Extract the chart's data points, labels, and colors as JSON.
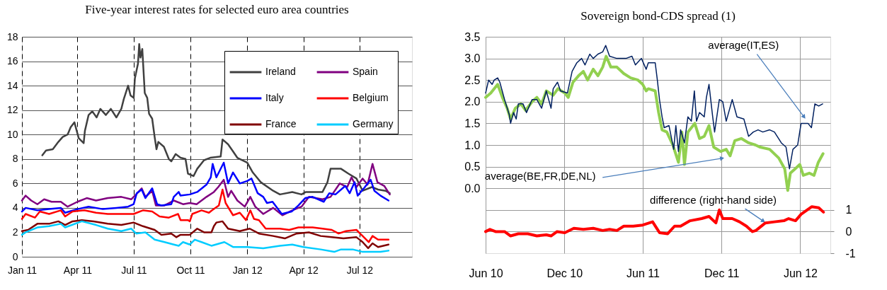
{
  "chart_data": [
    {
      "type": "line",
      "title": "Five-year interest rates for selected euro area countries",
      "xlim": [
        "2011-01-01",
        "2012-09-24"
      ],
      "ylim": [
        0,
        18
      ],
      "xticks": [
        {
          "value": "2011-01-01",
          "label": "Jan 11"
        },
        {
          "value": "2011-04-01",
          "label": "Apr 11"
        },
        {
          "value": "2011-07-01",
          "label": "Jul 11"
        },
        {
          "value": "2011-10-01",
          "label": "Oct 11"
        },
        {
          "value": "2012-01-01",
          "label": "Jan 12"
        },
        {
          "value": "2012-04-01",
          "label": "Apr 12"
        },
        {
          "value": "2012-07-01",
          "label": "Jul 12"
        }
      ],
      "yticks": [
        0,
        2,
        4,
        6,
        8,
        10,
        12,
        14,
        16,
        18
      ],
      "grid": true,
      "legend": "top right",
      "series": [
        {
          "name": "Ireland",
          "color": "#404040",
          "x": [
            "2011-02-03",
            "2011-02-09",
            "2011-02-20",
            "2011-03-01",
            "2011-03-08",
            "2011-03-16",
            "2011-03-21",
            "2011-03-27",
            "2011-04-03",
            "2011-04-11",
            "2011-04-13",
            "2011-04-19",
            "2011-04-25",
            "2011-05-02",
            "2011-05-08",
            "2011-05-17",
            "2011-05-25",
            "2011-06-03",
            "2011-06-11",
            "2011-06-15",
            "2011-06-22",
            "2011-06-26",
            "2011-07-01",
            "2011-07-03",
            "2011-07-08",
            "2011-07-10",
            "2011-07-12",
            "2011-07-15",
            "2011-07-19",
            "2011-07-23",
            "2011-07-26",
            "2011-07-31",
            "2011-08-04",
            "2011-08-07",
            "2011-08-10",
            "2011-08-19",
            "2011-08-27",
            "2011-08-31",
            "2011-09-07",
            "2011-09-15",
            "2011-09-23",
            "2011-09-27",
            "2011-10-06",
            "2011-10-12",
            "2011-10-23",
            "2011-11-02",
            "2011-11-19",
            "2011-11-22",
            "2011-12-01",
            "2011-12-08",
            "2011-12-16",
            "2012-01-01",
            "2012-01-10",
            "2012-01-23",
            "2012-02-12",
            "2012-02-23",
            "2012-03-14",
            "2012-03-29",
            "2012-04-05",
            "2012-05-02",
            "2012-05-10",
            "2012-05-15",
            "2012-06-01",
            "2012-06-13",
            "2012-06-26",
            "2012-07-06",
            "2012-07-21",
            "2012-07-31",
            "2012-08-12",
            "2012-08-19"
          ],
          "values": [
            8.3,
            8.7,
            8.8,
            9.4,
            9.8,
            10.0,
            10.6,
            11.0,
            9.7,
            9.3,
            10.3,
            11.6,
            11.9,
            11.4,
            12.1,
            11.6,
            12.1,
            11.4,
            12.1,
            12.9,
            14.0,
            13.2,
            13.0,
            14.6,
            15.8,
            17.4,
            16.3,
            17.0,
            13.4,
            13.0,
            11.7,
            11.3,
            9.8,
            8.8,
            9.4,
            9.0,
            8.0,
            7.8,
            8.4,
            8.1,
            8.0,
            6.8,
            6.6,
            7.2,
            7.9,
            8.1,
            8.2,
            9.6,
            9.2,
            8.7,
            8.1,
            7.7,
            6.9,
            6.1,
            5.4,
            5.1,
            5.3,
            5.1,
            5.3,
            5.3,
            6.1,
            7.2,
            7.2,
            6.8,
            6.4,
            5.4,
            5.7,
            5.5,
            5.4,
            5.2
          ]
        },
        {
          "name": "Spain",
          "color": "#800080",
          "x": [
            "2011-01-01",
            "2011-01-07",
            "2011-01-16",
            "2011-01-26",
            "2011-02-06",
            "2011-02-18",
            "2011-03-05",
            "2011-03-16",
            "2011-04-01",
            "2011-04-16",
            "2011-05-01",
            "2011-05-20",
            "2011-06-11",
            "2011-06-27",
            "2011-07-05",
            "2011-07-14",
            "2011-07-20",
            "2011-07-31",
            "2011-08-06",
            "2011-08-20",
            "2011-09-04",
            "2011-09-19",
            "2011-09-30",
            "2011-10-11",
            "2011-10-27",
            "2011-11-08",
            "2011-11-15",
            "2011-11-24",
            "2011-11-27",
            "2011-12-01",
            "2011-12-06",
            "2011-12-16",
            "2011-12-28",
            "2012-01-06",
            "2012-01-14",
            "2012-01-27",
            "2012-02-12",
            "2012-02-27",
            "2012-03-14",
            "2012-03-29",
            "2012-04-10",
            "2012-05-02",
            "2012-05-15",
            "2012-05-30",
            "2012-06-11",
            "2012-06-18",
            "2012-06-26",
            "2012-07-06",
            "2012-07-14",
            "2012-07-22",
            "2012-07-30",
            "2012-08-10",
            "2012-08-19"
          ],
          "values": [
            4.6,
            5.0,
            4.6,
            4.3,
            4.7,
            4.5,
            4.5,
            4.1,
            4.5,
            4.8,
            4.6,
            4.8,
            4.9,
            4.7,
            5.1,
            5.6,
            4.9,
            5.4,
            4.2,
            4.2,
            4.6,
            4.3,
            4.4,
            4.3,
            4.9,
            5.3,
            5.7,
            6.3,
            5.7,
            4.9,
            5.4,
            4.6,
            4.1,
            4.9,
            4.1,
            3.5,
            4.0,
            3.4,
            3.8,
            4.1,
            4.9,
            4.7,
            4.9,
            6.0,
            5.7,
            6.5,
            5.7,
            6.4,
            5.9,
            7.6,
            6.1,
            5.8,
            5.1
          ]
        },
        {
          "name": "Italy",
          "color": "#0000ff",
          "x": [
            "2011-01-01",
            "2011-01-07",
            "2011-01-26",
            "2011-02-14",
            "2011-03-05",
            "2011-03-12",
            "2011-04-01",
            "2011-04-19",
            "2011-05-12",
            "2011-06-03",
            "2011-06-22",
            "2011-07-01",
            "2011-07-06",
            "2011-07-14",
            "2011-07-20",
            "2011-07-31",
            "2011-08-08",
            "2011-08-15",
            "2011-08-31",
            "2011-09-04",
            "2011-09-12",
            "2011-09-15",
            "2011-09-30",
            "2011-10-12",
            "2011-10-27",
            "2011-11-03",
            "2011-11-06",
            "2011-11-12",
            "2011-11-24",
            "2011-12-01",
            "2011-12-09",
            "2011-12-20",
            "2012-01-01",
            "2012-01-08",
            "2012-01-18",
            "2012-01-27",
            "2012-02-02",
            "2012-02-11",
            "2012-02-26",
            "2012-03-13",
            "2012-03-24",
            "2012-04-04",
            "2012-04-16",
            "2012-05-04",
            "2012-05-13",
            "2012-05-23",
            "2012-06-08",
            "2012-06-15",
            "2012-06-23",
            "2012-06-28",
            "2012-07-08",
            "2012-07-19",
            "2012-07-25",
            "2012-08-04",
            "2012-08-17"
          ],
          "values": [
            3.7,
            4.0,
            3.8,
            3.9,
            4.0,
            3.6,
            3.9,
            4.1,
            3.9,
            4.0,
            4.1,
            4.3,
            5.2,
            5.5,
            4.8,
            5.6,
            4.3,
            4.2,
            4.3,
            4.9,
            5.3,
            5.0,
            5.1,
            5.3,
            5.9,
            6.5,
            7.6,
            6.5,
            7.7,
            6.0,
            6.9,
            6.0,
            6.2,
            6.4,
            5.2,
            4.9,
            4.4,
            4.5,
            3.5,
            3.7,
            4.2,
            4.8,
            4.9,
            4.5,
            5.2,
            5.1,
            5.8,
            5.2,
            6.1,
            5.0,
            5.6,
            6.3,
            5.4,
            5.0,
            4.6
          ]
        },
        {
          "name": "Belgium",
          "color": "#ff0000",
          "x": [
            "2011-01-01",
            "2011-01-07",
            "2011-01-22",
            "2011-01-30",
            "2011-02-14",
            "2011-03-05",
            "2011-03-12",
            "2011-03-24",
            "2011-04-12",
            "2011-05-01",
            "2011-05-20",
            "2011-06-08",
            "2011-07-01",
            "2011-07-16",
            "2011-07-31",
            "2011-08-12",
            "2011-08-27",
            "2011-09-11",
            "2011-09-15",
            "2011-09-27",
            "2011-09-30",
            "2011-10-04",
            "2011-10-19",
            "2011-10-31",
            "2011-11-05",
            "2011-11-16",
            "2011-11-22",
            "2011-11-27",
            "2011-12-09",
            "2011-12-20",
            "2011-12-30",
            "2012-01-06",
            "2012-01-12",
            "2012-01-20",
            "2012-01-31",
            "2012-02-23",
            "2012-03-09",
            "2012-03-24",
            "2012-04-16",
            "2012-05-02",
            "2012-05-17",
            "2012-05-28",
            "2012-06-09",
            "2012-06-26",
            "2012-07-08",
            "2012-07-16",
            "2012-07-22",
            "2012-07-31",
            "2012-08-17"
          ],
          "values": [
            3.1,
            3.5,
            3.2,
            3.7,
            3.5,
            3.8,
            3.3,
            3.7,
            3.8,
            3.6,
            3.5,
            3.5,
            3.5,
            3.8,
            3.7,
            3.3,
            3.2,
            3.5,
            3.0,
            3.0,
            2.9,
            3.5,
            3.8,
            3.6,
            3.8,
            4.2,
            5.5,
            4.4,
            3.4,
            3.6,
            3.0,
            3.8,
            3.1,
            3.0,
            2.3,
            2.3,
            2.2,
            2.4,
            2.4,
            2.3,
            2.2,
            1.9,
            2.1,
            2.2,
            1.6,
            1.2,
            1.7,
            1.4,
            1.4
          ]
        },
        {
          "name": "France",
          "color": "#800000",
          "x": [
            "2011-01-01",
            "2011-01-11",
            "2011-01-26",
            "2011-02-14",
            "2011-03-01",
            "2011-03-12",
            "2011-03-24",
            "2011-04-08",
            "2011-04-27",
            "2011-05-20",
            "2011-06-11",
            "2011-07-01",
            "2011-07-16",
            "2011-08-04",
            "2011-08-15",
            "2011-08-31",
            "2011-09-08",
            "2011-09-15",
            "2011-09-30",
            "2011-10-12",
            "2011-10-23",
            "2011-11-04",
            "2011-11-08",
            "2011-11-12",
            "2011-11-22",
            "2011-12-01",
            "2011-12-20",
            "2012-01-05",
            "2012-01-20",
            "2012-02-12",
            "2012-03-02",
            "2012-03-21",
            "2012-04-10",
            "2012-04-29",
            "2012-05-17",
            "2012-06-05",
            "2012-06-26",
            "2012-07-06",
            "2012-07-15",
            "2012-07-22",
            "2012-07-31",
            "2012-08-17"
          ],
          "values": [
            2.1,
            2.2,
            2.7,
            2.7,
            2.9,
            2.6,
            2.9,
            3.0,
            2.9,
            2.7,
            2.6,
            2.8,
            2.5,
            2.2,
            1.8,
            1.9,
            1.6,
            1.8,
            1.8,
            2.3,
            2.0,
            2.0,
            2.5,
            2.8,
            2.9,
            2.3,
            2.1,
            2.3,
            1.9,
            1.7,
            1.5,
            1.9,
            2.0,
            1.7,
            1.6,
            1.5,
            1.6,
            1.2,
            0.7,
            1.1,
            0.8,
            1.0
          ]
        },
        {
          "name": "Germany",
          "color": "#00ccff",
          "x": [
            "2011-01-01",
            "2011-01-07",
            "2011-01-26",
            "2011-02-14",
            "2011-03-05",
            "2011-03-12",
            "2011-04-08",
            "2011-05-01",
            "2011-05-20",
            "2011-06-11",
            "2011-06-27",
            "2011-07-05",
            "2011-07-20",
            "2011-08-04",
            "2011-08-20",
            "2011-09-04",
            "2011-09-12",
            "2011-09-19",
            "2011-09-30",
            "2011-10-08",
            "2011-10-19",
            "2011-11-04",
            "2011-11-25",
            "2011-12-09",
            "2012-01-01",
            "2012-01-27",
            "2012-02-23",
            "2012-03-14",
            "2012-04-01",
            "2012-04-29",
            "2012-05-21",
            "2012-06-01",
            "2012-06-20",
            "2012-07-06",
            "2012-07-20",
            "2012-08-04",
            "2012-08-17"
          ],
          "values": [
            1.8,
            2.0,
            2.4,
            2.5,
            2.7,
            2.4,
            2.9,
            2.6,
            2.3,
            2.1,
            2.3,
            1.9,
            2.0,
            1.4,
            1.2,
            1.0,
            0.9,
            1.2,
            1.0,
            1.4,
            1.2,
            0.9,
            1.2,
            0.8,
            0.8,
            0.7,
            0.9,
            1.0,
            0.8,
            0.6,
            0.4,
            0.6,
            0.6,
            0.4,
            0.4,
            0.4,
            0.5
          ]
        }
      ]
    },
    {
      "type": "line",
      "title": "Sovereign bond-CDS spread (1)",
      "xlim": [
        "2010-06-01",
        "2012-08-10"
      ],
      "ylim": [
        -1.5,
        3.5
      ],
      "y2lim": [
        -1,
        9
      ],
      "xticks": [
        {
          "value": "2010-06-01",
          "label": "Jun 10"
        },
        {
          "value": "2010-12-01",
          "label": "Dec 10"
        },
        {
          "value": "2011-06-01",
          "label": "Jun 11"
        },
        {
          "value": "2011-12-01",
          "label": "Dec 11"
        },
        {
          "value": "2012-06-01",
          "label": "Jun 12"
        }
      ],
      "yticks": [
        {
          "value": -1,
          "label": null
        },
        {
          "value": -0.5,
          "label": null
        },
        {
          "value": 0,
          "label": "0.0"
        },
        {
          "value": 0.5,
          "label": "0.5"
        },
        {
          "value": 1,
          "label": "1.0"
        },
        {
          "value": 1.5,
          "label": "1.5"
        },
        {
          "value": 2,
          "label": "2.0"
        },
        {
          "value": 2.5,
          "label": "2.5"
        },
        {
          "value": 3,
          "label": "3.0"
        },
        {
          "value": 3.5,
          "label": "3.5"
        }
      ],
      "y2ticks": [
        -1,
        0,
        1
      ],
      "grid": true,
      "annotations": [
        {
          "text": "average(IT,ES)",
          "x": "2012-06-09",
          "y": 1.66
        },
        {
          "text": "average(BE,FR,DE,NL)",
          "x": "2011-12-01",
          "y": 0.69
        },
        {
          "text": "difference (right-hand side)",
          "x": "2012-03-06",
          "y": -0.75
        }
      ],
      "series": [
        {
          "color": "#002060",
          "x": [
            "2010-06-01",
            "2010-06-08",
            "2010-06-16",
            "2010-06-21",
            "2010-06-29",
            "2010-07-04",
            "2010-07-15",
            "2010-07-26",
            "2010-07-29",
            "2010-08-05",
            "2010-08-11",
            "2010-08-16",
            "2010-08-27",
            "2010-09-04",
            "2010-09-17",
            "2010-09-28",
            "2010-10-09",
            "2010-10-20",
            "2010-10-31",
            "2010-11-05",
            "2010-11-15",
            "2010-11-22",
            "2010-12-08",
            "2010-12-19",
            "2010-12-30",
            "2011-01-10",
            "2011-01-18",
            "2011-01-29",
            "2011-02-06",
            "2011-02-17",
            "2011-02-28",
            "2011-03-07",
            "2011-03-16",
            "2011-04-02",
            "2011-04-23",
            "2011-05-07",
            "2011-05-15",
            "2011-05-29",
            "2011-06-09",
            "2011-06-14",
            "2011-06-30",
            "2011-07-05",
            "2011-07-10",
            "2011-07-16",
            "2011-07-21",
            "2011-08-01",
            "2011-08-12",
            "2011-08-17",
            "2011-08-23",
            "2011-08-28",
            "2011-09-06",
            "2011-09-14",
            "2011-09-22",
            "2011-09-29",
            "2011-10-04",
            "2011-10-11",
            "2011-10-22",
            "2011-10-27",
            "2011-11-02",
            "2011-11-10",
            "2011-11-15",
            "2011-11-26",
            "2011-12-04",
            "2011-12-12",
            "2011-12-26",
            "2012-01-06",
            "2012-01-22",
            "2012-02-02",
            "2012-02-13",
            "2012-02-24",
            "2012-03-06",
            "2012-03-22",
            "2012-04-02",
            "2012-04-18",
            "2012-04-29",
            "2012-05-07",
            "2012-05-15",
            "2012-05-26",
            "2012-06-03",
            "2012-06-11",
            "2012-06-19",
            "2012-06-27",
            "2012-07-05",
            "2012-07-14",
            "2012-07-23"
          ],
          "values": [
            2.2,
            2.5,
            2.4,
            2.5,
            2.55,
            2.45,
            2.05,
            1.7,
            1.5,
            1.75,
            1.6,
            1.95,
            1.95,
            1.75,
            2.05,
            2.05,
            1.85,
            2.25,
            1.85,
            2.3,
            2.45,
            2.25,
            2.2,
            2.7,
            2.9,
            3.0,
            2.85,
            3.1,
            3.0,
            3.1,
            3.15,
            3.3,
            3.05,
            3.0,
            3.0,
            3.05,
            2.85,
            3.0,
            2.75,
            2.9,
            2.9,
            2.5,
            2.05,
            1.65,
            1.4,
            1.45,
            0.9,
            1.45,
            0.85,
            1.35,
            1.05,
            1.65,
            1.55,
            2.25,
            1.55,
            1.75,
            1.65,
            2.1,
            2.4,
            1.7,
            1.3,
            2.05,
            2.0,
            1.55,
            2.05,
            1.65,
            1.6,
            1.2,
            1.3,
            1.35,
            1.3,
            1.35,
            1.3,
            1.05,
            0.95,
            0.45,
            0.9,
            1.0,
            1.5,
            1.5,
            1.5,
            1.4,
            1.95,
            1.9,
            1.95
          ]
        },
        {
          "color": "#92d050",
          "x": [
            "2010-06-01",
            "2010-06-13",
            "2010-06-29",
            "2010-07-10",
            "2010-07-21",
            "2010-07-29",
            "2010-08-09",
            "2010-08-22",
            "2010-09-02",
            "2010-09-17",
            "2010-09-28",
            "2010-10-09",
            "2010-10-20",
            "2010-11-05",
            "2010-11-16",
            "2010-12-02",
            "2010-12-10",
            "2010-12-21",
            "2011-01-03",
            "2011-01-14",
            "2011-01-24",
            "2011-02-06",
            "2011-02-17",
            "2011-02-28",
            "2011-03-08",
            "2011-03-19",
            "2011-04-02",
            "2011-04-18",
            "2011-05-04",
            "2011-05-21",
            "2011-06-01",
            "2011-06-09",
            "2011-06-14",
            "2011-06-30",
            "2011-07-08",
            "2011-07-16",
            "2011-07-27",
            "2011-08-10",
            "2011-08-23",
            "2011-08-31",
            "2011-09-06",
            "2011-09-14",
            "2011-09-30",
            "2011-10-11",
            "2011-10-22",
            "2011-11-02",
            "2011-11-13",
            "2011-11-29",
            "2011-12-12",
            "2011-12-21",
            "2012-01-01",
            "2012-01-16",
            "2012-02-02",
            "2012-02-18",
            "2012-02-29",
            "2012-03-22",
            "2012-04-12",
            "2012-04-26",
            "2012-05-03",
            "2012-05-09",
            "2012-05-20",
            "2012-05-31",
            "2012-06-08",
            "2012-06-22",
            "2012-07-03",
            "2012-07-13",
            "2012-07-24"
          ],
          "values": [
            2.1,
            2.2,
            2.4,
            2.1,
            1.85,
            1.6,
            1.85,
            1.95,
            1.8,
            2.0,
            2.1,
            1.95,
            2.25,
            2.15,
            2.3,
            2.2,
            2.1,
            2.45,
            2.6,
            2.7,
            2.5,
            2.75,
            2.6,
            2.8,
            3.05,
            2.8,
            2.8,
            2.65,
            2.55,
            2.5,
            2.4,
            2.25,
            2.3,
            2.25,
            1.75,
            1.35,
            1.3,
            1.0,
            0.6,
            1.3,
            0.55,
            1.3,
            1.5,
            1.15,
            1.2,
            1.45,
            0.95,
            0.85,
            0.9,
            0.75,
            1.1,
            1.15,
            1.05,
            1.0,
            0.95,
            0.9,
            0.7,
            0.45,
            -0.05,
            0.35,
            0.45,
            0.55,
            0.3,
            0.35,
            0.3,
            0.6,
            0.8
          ]
        },
        {
          "color": "#ff0000",
          "axis": "y2",
          "x": [
            "2010-06-01",
            "2010-06-11",
            "2010-06-24",
            "2010-07-15",
            "2010-07-29",
            "2010-08-16",
            "2010-09-07",
            "2010-09-28",
            "2010-10-20",
            "2010-10-31",
            "2010-11-14",
            "2010-12-02",
            "2010-12-23",
            "2011-01-14",
            "2011-02-06",
            "2011-02-28",
            "2011-03-16",
            "2011-04-02",
            "2011-04-18",
            "2011-05-10",
            "2011-06-01",
            "2011-06-24",
            "2011-07-10",
            "2011-07-29",
            "2011-08-14",
            "2011-08-28",
            "2011-09-19",
            "2011-10-16",
            "2011-11-02",
            "2011-11-18",
            "2011-11-26",
            "2011-12-04",
            "2011-12-26",
            "2012-01-12",
            "2012-01-28",
            "2012-02-11",
            "2012-02-19",
            "2012-03-12",
            "2012-04-02",
            "2012-04-24",
            "2012-05-05",
            "2012-05-21",
            "2012-06-03",
            "2012-06-17",
            "2012-06-28",
            "2012-07-14",
            "2012-07-25"
          ],
          "values": [
            0.0,
            0.1,
            0.0,
            0.0,
            -0.2,
            -0.1,
            -0.1,
            -0.2,
            -0.15,
            -0.2,
            0.0,
            -0.05,
            0.15,
            0.1,
            0.15,
            0.05,
            0.1,
            0.05,
            0.25,
            0.25,
            0.3,
            0.45,
            -0.05,
            -0.1,
            0.25,
            0.25,
            0.5,
            0.6,
            0.7,
            0.4,
            1.0,
            0.6,
            0.6,
            0.45,
            0.25,
            0.0,
            0.05,
            0.4,
            0.45,
            0.5,
            0.6,
            0.5,
            0.8,
            1.0,
            1.15,
            1.1,
            0.9
          ]
        }
      ]
    }
  ]
}
